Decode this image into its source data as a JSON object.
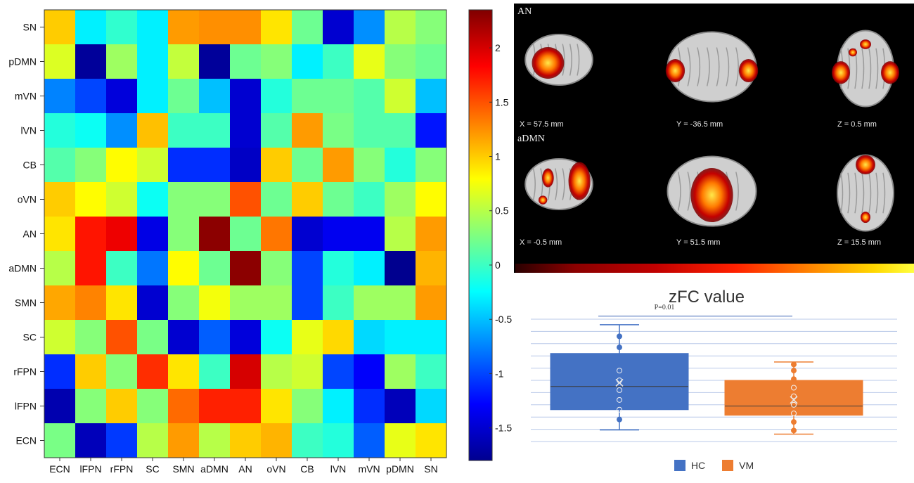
{
  "chart_data": [
    {
      "type": "heatmap",
      "rows": [
        "SN",
        "pDMN",
        "mVN",
        "lVN",
        "CB",
        "oVN",
        "AN",
        "aDMN",
        "SMN",
        "SC",
        "rFPN",
        "lFPN",
        "ECN"
      ],
      "columns": [
        "ECN",
        "lFPN",
        "rFPN",
        "SC",
        "SMN",
        "aDMN",
        "AN",
        "oVN",
        "CB",
        "lVN",
        "mVN",
        "pDMN",
        "SN"
      ],
      "values": [
        [
          1.0,
          -0.3,
          -0.05,
          -0.3,
          1.2,
          1.25,
          1.25,
          0.9,
          0.2,
          -1.5,
          -0.7,
          0.5,
          0.3
        ],
        [
          0.65,
          -1.75,
          0.4,
          -0.3,
          0.55,
          -1.75,
          0.2,
          0.3,
          -0.3,
          0.0,
          0.7,
          0.3,
          0.2
        ],
        [
          -0.75,
          -1.0,
          -1.45,
          -0.3,
          0.2,
          -0.5,
          -1.5,
          -0.1,
          0.2,
          0.2,
          0.1,
          0.6,
          -0.5
        ],
        [
          -0.1,
          -0.2,
          -0.7,
          1.05,
          0.0,
          0.0,
          -1.5,
          0.1,
          1.2,
          0.25,
          0.1,
          0.1,
          -1.2
        ],
        [
          0.1,
          0.3,
          0.8,
          0.6,
          -1.1,
          -1.1,
          -1.55,
          1.0,
          0.2,
          1.2,
          0.3,
          -0.1,
          0.3
        ],
        [
          1.0,
          0.8,
          0.6,
          -0.2,
          0.3,
          0.3,
          1.5,
          0.2,
          1.0,
          0.2,
          0.0,
          0.4,
          0.8
        ],
        [
          0.9,
          1.75,
          1.9,
          -1.4,
          0.3,
          2.3,
          0.2,
          1.35,
          -1.5,
          -1.35,
          -1.35,
          0.5,
          1.2
        ],
        [
          0.5,
          1.75,
          0.0,
          -0.8,
          0.8,
          0.2,
          2.3,
          0.3,
          -1.0,
          -0.1,
          -0.3,
          -1.8,
          1.1
        ],
        [
          1.15,
          1.3,
          0.9,
          -1.5,
          0.3,
          0.75,
          0.4,
          0.4,
          -1.0,
          0.0,
          0.4,
          0.4,
          1.2
        ],
        [
          0.6,
          0.3,
          1.5,
          0.25,
          -1.5,
          -0.9,
          -1.45,
          -0.2,
          0.7,
          0.95,
          -0.4,
          -0.3,
          -0.3
        ],
        [
          -1.1,
          1.0,
          0.3,
          1.65,
          0.9,
          0.0,
          2.0,
          0.5,
          0.6,
          -1.0,
          -1.3,
          0.4,
          0.0
        ],
        [
          -1.65,
          0.3,
          1.0,
          0.3,
          1.4,
          1.7,
          1.7,
          0.9,
          0.3,
          -0.3,
          -1.1,
          -1.6,
          -0.4
        ],
        [
          0.25,
          -1.6,
          -1.05,
          0.5,
          1.2,
          0.5,
          1.0,
          1.1,
          0.0,
          -0.1,
          -0.9,
          0.7,
          0.9
        ]
      ],
      "colorbar": {
        "min": -1.8,
        "max": 2.35,
        "ticks": [
          -1.5,
          -1,
          -0.5,
          0,
          0.5,
          1,
          1.5,
          2
        ]
      }
    },
    {
      "type": "box",
      "title": "zFC value",
      "annotation": "P=0.01",
      "ylim": [
        0,
        10
      ],
      "series": [
        {
          "name": "HC",
          "color": "#4472c4",
          "q1": 2.6,
          "median": 4.5,
          "q3": 7.2,
          "mean": 4.8,
          "whisker_low": 0.95,
          "whisker_high": 9.55,
          "points": [
            1.8,
            2.6,
            3.4,
            4.2,
            5.0,
            5.8,
            7.7,
            8.6
          ]
        },
        {
          "name": "VM",
          "color": "#ed7d31",
          "q1": 2.15,
          "median": 2.9,
          "q3": 5.0,
          "mean": 3.4,
          "whisker_low": 0.6,
          "whisker_high": 6.5,
          "points": [
            0.9,
            1.6,
            2.3,
            3.0,
            3.7,
            4.4,
            5.1,
            5.8,
            6.3
          ]
        }
      ]
    }
  ],
  "brain": {
    "rows": [
      {
        "label": "AN",
        "slices": [
          {
            "view": "sagittal",
            "coord": "X = 57.5 mm"
          },
          {
            "view": "coronal",
            "coord": "Y = -36.5 mm"
          },
          {
            "view": "axial",
            "coord": "Z = 0.5 mm"
          }
        ]
      },
      {
        "label": "aDMN",
        "slices": [
          {
            "view": "sagittal",
            "coord": "X = -0.5 mm"
          },
          {
            "view": "coronal",
            "coord": "Y = 51.5 mm"
          },
          {
            "view": "axial",
            "coord": "Z = 15.5 mm"
          }
        ]
      }
    ]
  }
}
